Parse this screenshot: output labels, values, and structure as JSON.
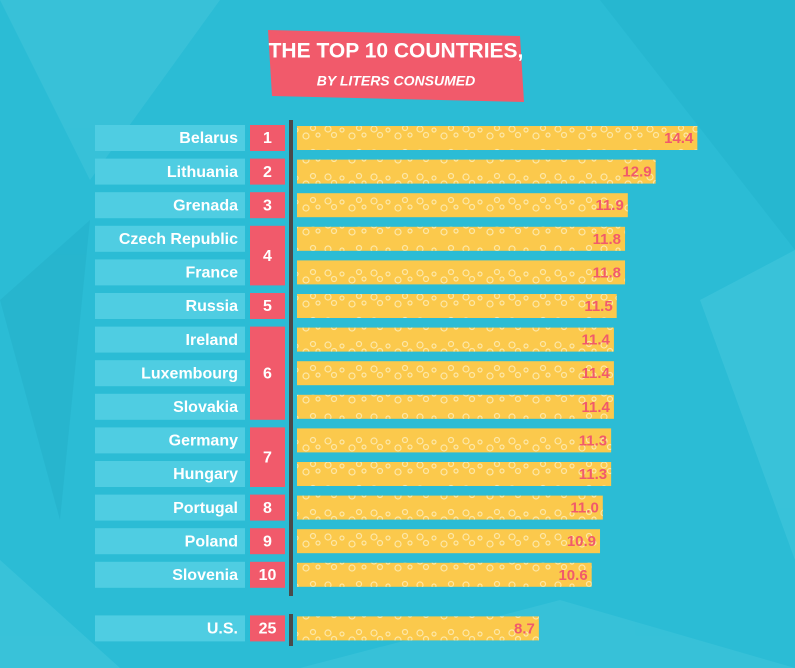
{
  "chart_data": {
    "type": "bar",
    "title": "THE TOP 10 COUNTRIES,",
    "subtitle": "BY LITERS CONSUMED",
    "categories": [
      "Belarus",
      "Lithuania",
      "Grenada",
      "Czech Republic",
      "France",
      "Russia",
      "Ireland",
      "Luxembourg",
      "Slovakia",
      "Germany",
      "Hungary",
      "Portugal",
      "Poland",
      "Slovenia",
      "U.S."
    ],
    "ranks": [
      1,
      2,
      3,
      4,
      null,
      5,
      6,
      null,
      null,
      7,
      null,
      8,
      9,
      10,
      25
    ],
    "values": [
      14.4,
      12.9,
      11.9,
      11.8,
      11.8,
      11.5,
      11.4,
      11.4,
      11.4,
      11.3,
      11.3,
      11.0,
      10.9,
      10.6,
      8.7
    ],
    "value_labels": [
      "14.4",
      "12.9",
      "11.9",
      "11.8",
      "11.8",
      "11.5",
      "11.4",
      "11.4",
      "11.4",
      "11.3",
      "11.3",
      "11.0",
      "10.9",
      "10.6",
      "8.7"
    ],
    "color": "#fbc94c"
  }
}
